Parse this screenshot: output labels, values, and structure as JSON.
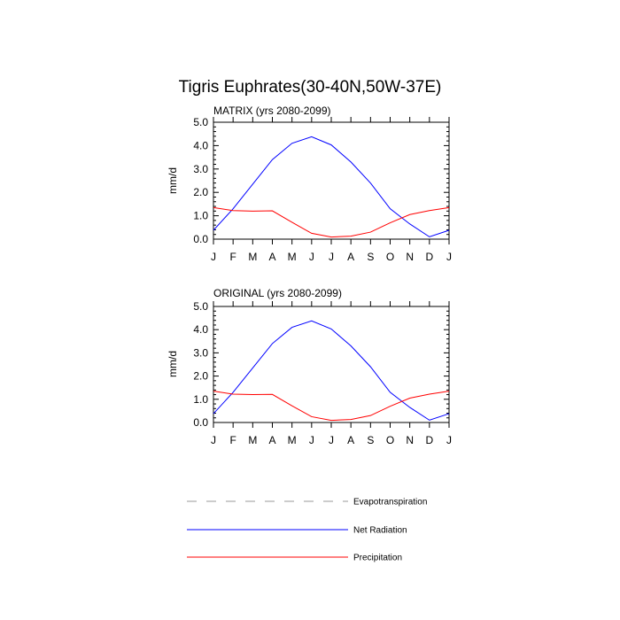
{
  "chart_data": {
    "title": "Tigris Euphrates(30-40N,50W-37E)",
    "categories": [
      "J",
      "F",
      "M",
      "A",
      "M",
      "J",
      "J",
      "A",
      "S",
      "O",
      "N",
      "D",
      "J"
    ],
    "ylim": [
      0,
      5
    ],
    "yticks": [
      "0.0",
      "1.0",
      "2.0",
      "3.0",
      "4.0",
      "5.0"
    ],
    "ylabel": "mm/d",
    "legend": [
      {
        "name": "Evapotranspiration",
        "color": "#999999",
        "dash": true
      },
      {
        "name": "Net Radiation",
        "color": "#0000ff",
        "dash": false
      },
      {
        "name": "Precipitation",
        "color": "#ff0000",
        "dash": false
      }
    ],
    "panels": [
      {
        "type": "line",
        "title": "MATRIX (yrs 2080-2099)",
        "series": [
          {
            "name": "Net Radiation",
            "color": "#0000ff",
            "values": [
              0.38,
              1.3,
              2.35,
              3.4,
              4.1,
              4.38,
              4.03,
              3.3,
              2.4,
              1.3,
              0.65,
              0.1,
              0.38
            ]
          },
          {
            "name": "Precipitation",
            "color": "#ff0000",
            "values": [
              1.35,
              1.22,
              1.2,
              1.21,
              0.72,
              0.25,
              0.09,
              0.13,
              0.3,
              0.7,
              1.05,
              1.22,
              1.35
            ]
          }
        ]
      },
      {
        "type": "line",
        "title": "ORIGINAL (yrs 2080-2099)",
        "series": [
          {
            "name": "Net Radiation",
            "color": "#0000ff",
            "values": [
              0.38,
              1.3,
              2.35,
              3.4,
              4.1,
              4.38,
              4.03,
              3.3,
              2.4,
              1.3,
              0.65,
              0.1,
              0.38
            ]
          },
          {
            "name": "Precipitation",
            "color": "#ff0000",
            "values": [
              1.35,
              1.22,
              1.2,
              1.21,
              0.72,
              0.25,
              0.09,
              0.13,
              0.3,
              0.7,
              1.05,
              1.22,
              1.35
            ]
          }
        ]
      }
    ]
  }
}
